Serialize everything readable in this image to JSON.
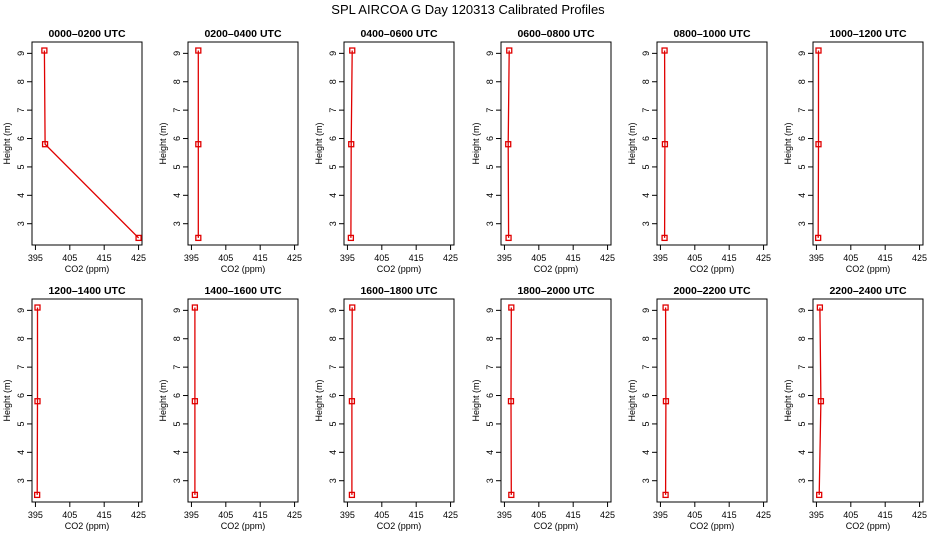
{
  "figure": {
    "title": "SPL AIRCOA G  Day 120313  Calibrated Profiles"
  },
  "axes_common": {
    "xlabel": "CO2 (ppm)",
    "ylabel": "Height (m)",
    "xlim": [
      394,
      426
    ],
    "ylim": [
      2.25,
      9.4
    ],
    "xticks": [
      395,
      405,
      415,
      425
    ],
    "xtick_labels": [
      "395",
      "405",
      "415",
      "425"
    ],
    "yticks": [
      3,
      4,
      5,
      6,
      7,
      8,
      9
    ],
    "ytick_labels": [
      "3",
      "4",
      "5",
      "6",
      "7",
      "8",
      "9"
    ],
    "grid": false,
    "line_color": "#e00000",
    "marker": "open-square"
  },
  "chart_data": [
    {
      "type": "line",
      "title": "0000–0200 UTC",
      "heights": [
        9.1,
        5.8,
        2.5
      ],
      "values": [
        397.6,
        397.8,
        425.0
      ]
    },
    {
      "type": "line",
      "title": "0200–0400 UTC",
      "heights": [
        9.1,
        5.8,
        2.5
      ],
      "values": [
        397.0,
        397.0,
        397.0
      ]
    },
    {
      "type": "line",
      "title": "0400–0600 UTC",
      "heights": [
        9.1,
        5.8,
        2.5
      ],
      "values": [
        396.4,
        396.1,
        396.0
      ]
    },
    {
      "type": "line",
      "title": "0600–0800 UTC",
      "heights": [
        9.1,
        5.8,
        2.5
      ],
      "values": [
        396.4,
        396.1,
        396.2
      ]
    },
    {
      "type": "line",
      "title": "0800–1000 UTC",
      "heights": [
        9.1,
        5.8,
        2.5
      ],
      "values": [
        396.2,
        396.3,
        396.2
      ]
    },
    {
      "type": "line",
      "title": "1000–1200 UTC",
      "heights": [
        9.1,
        5.8,
        2.5
      ],
      "values": [
        395.6,
        395.6,
        395.5
      ]
    },
    {
      "type": "line",
      "title": "1200–1400 UTC",
      "heights": [
        9.1,
        5.8,
        2.5
      ],
      "values": [
        395.6,
        395.6,
        395.5
      ]
    },
    {
      "type": "line",
      "title": "1400–1600 UTC",
      "heights": [
        9.1,
        5.8,
        2.5
      ],
      "values": [
        396.0,
        396.0,
        396.0
      ]
    },
    {
      "type": "line",
      "title": "1600–1800 UTC",
      "heights": [
        9.1,
        5.8,
        2.5
      ],
      "values": [
        396.4,
        396.3,
        396.3
      ]
    },
    {
      "type": "line",
      "title": "1800–2000 UTC",
      "heights": [
        9.1,
        5.8,
        2.5
      ],
      "values": [
        397.0,
        396.9,
        397.0
      ]
    },
    {
      "type": "line",
      "title": "2000–2200 UTC",
      "heights": [
        9.1,
        5.8,
        2.5
      ],
      "values": [
        396.5,
        396.6,
        396.5
      ]
    },
    {
      "type": "line",
      "title": "2200–2400 UTC",
      "heights": [
        9.1,
        5.8,
        2.5
      ],
      "values": [
        396.0,
        396.3,
        395.8
      ]
    }
  ]
}
